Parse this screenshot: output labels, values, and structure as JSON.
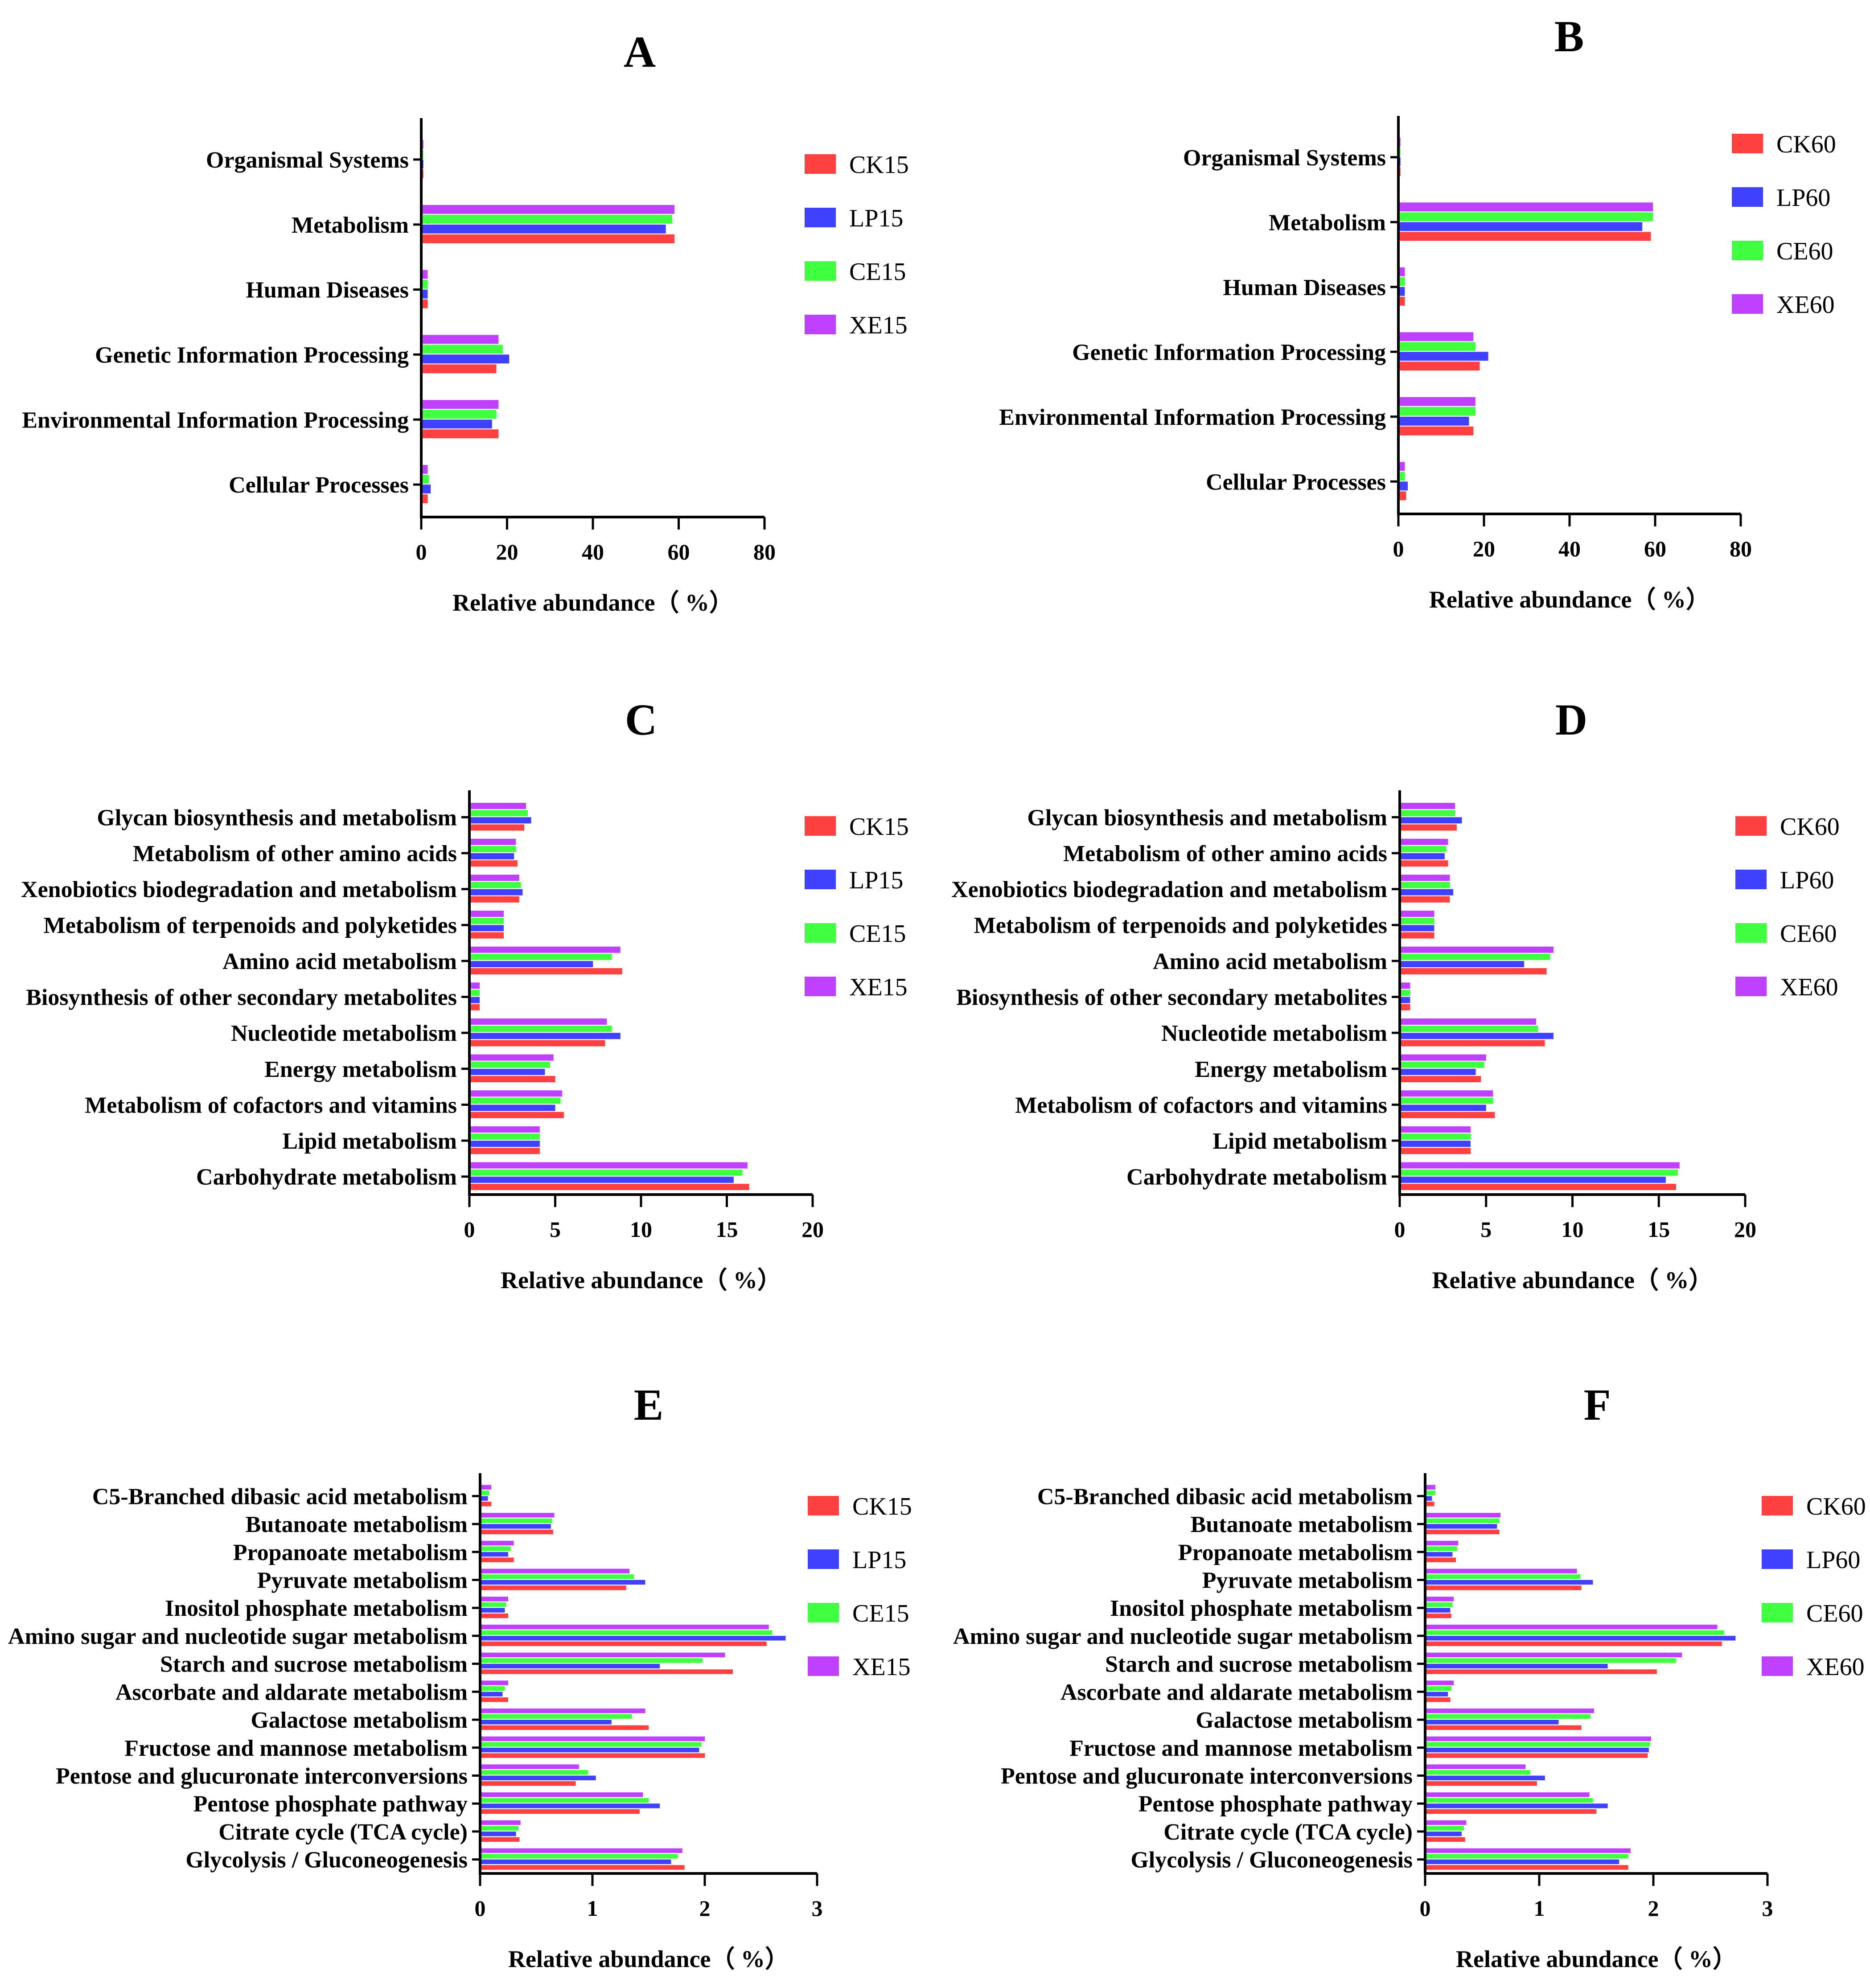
{
  "colors": {
    "CK": "#ff4040",
    "LP": "#4040ff",
    "CE": "#40ff40",
    "XE": "#c040ff",
    "axis": "#000000"
  },
  "chart_data": [
    {
      "panel": "A",
      "type": "bar",
      "orientation": "horizontal",
      "xlabel": "Relative abundance（ %）",
      "xlim": [
        0,
        80
      ],
      "xticks": [
        "0",
        "20",
        "40",
        "60",
        "80"
      ],
      "categories": [
        "Organismal Systems",
        "Metabolism",
        "Human Diseases",
        "Genetic Information Processing",
        "Environmental Information Processing",
        "Cellular Processes"
      ],
      "series": [
        {
          "name": "CK15",
          "group": "CK",
          "values": [
            0.5,
            59,
            1.5,
            17.5,
            18,
            1.5
          ]
        },
        {
          "name": "LP15",
          "group": "LP",
          "values": [
            0.5,
            57,
            1.5,
            20.5,
            16.5,
            2.2
          ]
        },
        {
          "name": "CE15",
          "group": "CE",
          "values": [
            0.5,
            58.5,
            1.5,
            19,
            17.5,
            1.8
          ]
        },
        {
          "name": "XE15",
          "group": "XE",
          "values": [
            0.5,
            59,
            1.5,
            18,
            18,
            1.5
          ]
        }
      ]
    },
    {
      "panel": "B",
      "type": "bar",
      "orientation": "horizontal",
      "xlabel": "Relative abundance（ %）",
      "xlim": [
        0,
        80
      ],
      "xticks": [
        "0",
        "20",
        "40",
        "60",
        "80"
      ],
      "categories": [
        "Organismal Systems",
        "Metabolism",
        "Human Diseases",
        "Genetic Information Processing",
        "Environmental Information Processing",
        "Cellular Processes"
      ],
      "series": [
        {
          "name": "CK60",
          "group": "CK",
          "values": [
            0.5,
            59,
            1.5,
            19,
            17.5,
            1.8
          ]
        },
        {
          "name": "LP60",
          "group": "LP",
          "values": [
            0.5,
            57,
            1.5,
            21,
            16.5,
            2.2
          ]
        },
        {
          "name": "CE60",
          "group": "CE",
          "values": [
            0.5,
            59.5,
            1.5,
            18,
            18,
            1.5
          ]
        },
        {
          "name": "XE60",
          "group": "XE",
          "values": [
            0.5,
            59.5,
            1.5,
            17.5,
            18,
            1.5
          ]
        }
      ]
    },
    {
      "panel": "C",
      "type": "bar",
      "orientation": "horizontal",
      "xlabel": "Relative abundance（ %）",
      "xlim": [
        0,
        20
      ],
      "xticks": [
        "0",
        "5",
        "10",
        "15",
        "20"
      ],
      "categories": [
        "Glycan biosynthesis and metabolism",
        "Metabolism of other amino acids",
        "Xenobiotics biodegradation and metabolism",
        "Metabolism of terpenoids and polyketides",
        "Amino acid metabolism",
        "Biosynthesis of other secondary metabolites",
        "Nucleotide metabolism",
        "Energy metabolism",
        "Metabolism of cofactors and vitamins",
        "Lipid metabolism",
        "Carbohydrate metabolism"
      ],
      "series": [
        {
          "name": "CK15",
          "group": "CK",
          "values": [
            3.2,
            2.8,
            2.9,
            2.0,
            8.9,
            0.6,
            7.9,
            5.0,
            5.5,
            4.1,
            16.3
          ]
        },
        {
          "name": "LP15",
          "group": "LP",
          "values": [
            3.6,
            2.6,
            3.1,
            2.0,
            7.2,
            0.6,
            8.8,
            4.4,
            5.0,
            4.1,
            15.4
          ]
        },
        {
          "name": "CE15",
          "group": "CE",
          "values": [
            3.4,
            2.7,
            3.0,
            2.0,
            8.3,
            0.6,
            8.3,
            4.7,
            5.3,
            4.1,
            15.9
          ]
        },
        {
          "name": "XE15",
          "group": "XE",
          "values": [
            3.3,
            2.7,
            2.9,
            2.0,
            8.8,
            0.6,
            8.0,
            4.9,
            5.4,
            4.1,
            16.2
          ]
        }
      ]
    },
    {
      "panel": "D",
      "type": "bar",
      "orientation": "horizontal",
      "xlabel": "Relative abundance（ %）",
      "xlim": [
        0,
        20
      ],
      "xticks": [
        "0",
        "5",
        "10",
        "15",
        "20"
      ],
      "categories": [
        "Glycan biosynthesis and metabolism",
        "Metabolism of other amino acids",
        "Xenobiotics biodegradation and metabolism",
        "Metabolism of terpenoids and polyketides",
        "Amino acid metabolism",
        "Biosynthesis of other secondary metabolites",
        "Nucleotide metabolism",
        "Energy metabolism",
        "Metabolism of cofactors and vitamins",
        "Lipid metabolism",
        "Carbohydrate metabolism"
      ],
      "series": [
        {
          "name": "CK60",
          "group": "CK",
          "values": [
            3.3,
            2.8,
            2.9,
            2.0,
            8.5,
            0.6,
            8.4,
            4.7,
            5.5,
            4.1,
            16.0
          ]
        },
        {
          "name": "LP60",
          "group": "LP",
          "values": [
            3.6,
            2.6,
            3.1,
            2.0,
            7.2,
            0.6,
            8.9,
            4.4,
            5.0,
            4.1,
            15.4
          ]
        },
        {
          "name": "CE60",
          "group": "CE",
          "values": [
            3.2,
            2.7,
            2.9,
            2.0,
            8.7,
            0.6,
            8.0,
            4.9,
            5.4,
            4.1,
            16.1
          ]
        },
        {
          "name": "XE60",
          "group": "XE",
          "values": [
            3.2,
            2.8,
            2.9,
            2.0,
            8.9,
            0.6,
            7.9,
            5.0,
            5.4,
            4.1,
            16.2
          ]
        }
      ]
    },
    {
      "panel": "E",
      "type": "bar",
      "orientation": "horizontal",
      "xlabel": "Relative abundance（ %）",
      "xlim": [
        0,
        3
      ],
      "xticks": [
        "0",
        "1",
        "2",
        "3"
      ],
      "categories": [
        "C5-Branched dibasic acid metabolism",
        "Butanoate metabolism",
        "Propanoate metabolism",
        "Pyruvate metabolism",
        "Inositol phosphate metabolism",
        "Amino sugar and nucleotide sugar metabolism",
        "Starch and sucrose metabolism",
        "Ascorbate and aldarate metabolism",
        "Galactose metabolism",
        "Fructose and mannose metabolism",
        "Pentose and glucuronate interconversions",
        "Pentose phosphate pathway",
        "Citrate cycle (TCA cycle)",
        "Glycolysis / Gluconeogenesis"
      ],
      "series": [
        {
          "name": "CK15",
          "group": "CK",
          "values": [
            0.1,
            0.65,
            0.3,
            1.3,
            0.25,
            2.55,
            2.25,
            0.25,
            1.5,
            2.0,
            0.85,
            1.42,
            0.35,
            1.82
          ]
        },
        {
          "name": "LP15",
          "group": "LP",
          "values": [
            0.07,
            0.63,
            0.25,
            1.47,
            0.22,
            2.72,
            1.6,
            0.2,
            1.17,
            1.95,
            1.03,
            1.6,
            0.32,
            1.7
          ]
        },
        {
          "name": "CE15",
          "group": "CE",
          "values": [
            0.08,
            0.64,
            0.27,
            1.37,
            0.23,
            2.6,
            1.98,
            0.22,
            1.35,
            1.97,
            0.96,
            1.5,
            0.34,
            1.76
          ]
        },
        {
          "name": "XE15",
          "group": "XE",
          "values": [
            0.1,
            0.66,
            0.3,
            1.33,
            0.25,
            2.57,
            2.18,
            0.25,
            1.47,
            2.0,
            0.88,
            1.45,
            0.36,
            1.8
          ]
        }
      ]
    },
    {
      "panel": "F",
      "type": "bar",
      "orientation": "horizontal",
      "xlabel": "Relative abundance（ %）",
      "xlim": [
        0,
        3
      ],
      "xticks": [
        "0",
        "1",
        "2",
        "3"
      ],
      "categories": [
        "C5-Branched dibasic acid metabolism",
        "Butanoate metabolism",
        "Propanoate metabolism",
        "Pyruvate metabolism",
        "Inositol phosphate metabolism",
        "Amino sugar and nucleotide sugar metabolism",
        "Starch and sucrose metabolism",
        "Ascorbate and aldarate metabolism",
        "Galactose metabolism",
        "Fructose and mannose metabolism",
        "Pentose and glucuronate interconversions",
        "Pentose phosphate pathway",
        "Citrate cycle (TCA cycle)",
        "Glycolysis / Gluconeogenesis"
      ],
      "series": [
        {
          "name": "CK60",
          "group": "CK",
          "values": [
            0.08,
            0.65,
            0.27,
            1.37,
            0.23,
            2.6,
            2.03,
            0.22,
            1.37,
            1.95,
            0.98,
            1.5,
            0.35,
            1.78
          ]
        },
        {
          "name": "LP60",
          "group": "LP",
          "values": [
            0.06,
            0.63,
            0.24,
            1.47,
            0.22,
            2.72,
            1.6,
            0.2,
            1.17,
            1.96,
            1.05,
            1.6,
            0.32,
            1.7
          ]
        },
        {
          "name": "CE60",
          "group": "CE",
          "values": [
            0.09,
            0.65,
            0.28,
            1.36,
            0.24,
            2.62,
            2.2,
            0.23,
            1.45,
            1.97,
            0.92,
            1.47,
            0.34,
            1.78
          ]
        },
        {
          "name": "XE60",
          "group": "XE",
          "values": [
            0.09,
            0.66,
            0.29,
            1.33,
            0.25,
            2.56,
            2.25,
            0.25,
            1.48,
            1.98,
            0.88,
            1.44,
            0.36,
            1.8
          ]
        }
      ]
    }
  ]
}
